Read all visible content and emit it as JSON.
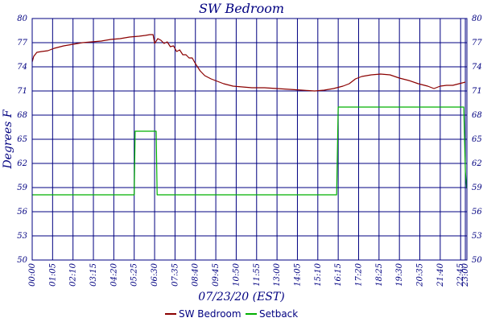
{
  "chart_data": {
    "type": "line",
    "title": "SW Bedroom",
    "xlabel": "07/23/20 (EST)",
    "ylabel": "Degrees F",
    "ylim": [
      50,
      80
    ],
    "y_ticks": [
      50,
      53,
      56,
      59,
      62,
      65,
      68,
      71,
      74,
      77,
      80
    ],
    "y_tick_labels": [
      "50",
      "53",
      "56",
      "59",
      "62",
      "65",
      "68",
      "71",
      "74",
      "77",
      "80"
    ],
    "x_tick_labels": [
      "00:00",
      "01:05",
      "02:10",
      "03:15",
      "04:20",
      "05:25",
      "06:30",
      "07:35",
      "08:40",
      "09:45",
      "10:50",
      "11:55",
      "13:00",
      "14:05",
      "15:10",
      "16:15",
      "17:20",
      "18:25",
      "19:30",
      "20:35",
      "21:40",
      "22:45",
      "23:00"
    ],
    "x_tick_minutes": [
      0,
      65,
      130,
      195,
      260,
      325,
      390,
      455,
      520,
      585,
      650,
      715,
      780,
      845,
      910,
      975,
      1040,
      1105,
      1170,
      1235,
      1300,
      1365,
      1380
    ],
    "xlim_minutes": [
      0,
      1385
    ],
    "grid": true,
    "legend_position": "bottom",
    "series": [
      {
        "name": "SW Bedroom",
        "color": "#8b0000",
        "points": [
          [
            0,
            74.6
          ],
          [
            5,
            75.3
          ],
          [
            15,
            75.8
          ],
          [
            30,
            75.9
          ],
          [
            50,
            76.0
          ],
          [
            70,
            76.3
          ],
          [
            100,
            76.6
          ],
          [
            130,
            76.8
          ],
          [
            160,
            77.0
          ],
          [
            190,
            77.1
          ],
          [
            220,
            77.2
          ],
          [
            250,
            77.4
          ],
          [
            280,
            77.5
          ],
          [
            310,
            77.7
          ],
          [
            340,
            77.8
          ],
          [
            360,
            77.9
          ],
          [
            375,
            78.0
          ],
          [
            385,
            78.0
          ],
          [
            390,
            76.9
          ],
          [
            400,
            77.5
          ],
          [
            410,
            77.3
          ],
          [
            420,
            76.9
          ],
          [
            430,
            77.1
          ],
          [
            440,
            76.5
          ],
          [
            450,
            76.6
          ],
          [
            460,
            75.9
          ],
          [
            470,
            76.1
          ],
          [
            480,
            75.5
          ],
          [
            490,
            75.5
          ],
          [
            500,
            75.1
          ],
          [
            510,
            75.1
          ],
          [
            520,
            74.4
          ],
          [
            535,
            73.5
          ],
          [
            550,
            72.9
          ],
          [
            570,
            72.5
          ],
          [
            590,
            72.2
          ],
          [
            610,
            71.9
          ],
          [
            640,
            71.6
          ],
          [
            670,
            71.5
          ],
          [
            700,
            71.4
          ],
          [
            740,
            71.4
          ],
          [
            780,
            71.3
          ],
          [
            820,
            71.2
          ],
          [
            860,
            71.1
          ],
          [
            900,
            71.0
          ],
          [
            930,
            71.1
          ],
          [
            960,
            71.3
          ],
          [
            990,
            71.6
          ],
          [
            1010,
            71.9
          ],
          [
            1030,
            72.5
          ],
          [
            1050,
            72.8
          ],
          [
            1080,
            73.0
          ],
          [
            1110,
            73.1
          ],
          [
            1140,
            73.0
          ],
          [
            1170,
            72.6
          ],
          [
            1200,
            72.3
          ],
          [
            1230,
            71.9
          ],
          [
            1260,
            71.6
          ],
          [
            1280,
            71.3
          ],
          [
            1300,
            71.6
          ],
          [
            1320,
            71.7
          ],
          [
            1340,
            71.7
          ],
          [
            1360,
            71.9
          ],
          [
            1380,
            72.1
          ]
        ]
      },
      {
        "name": "Setback",
        "color": "#00b000",
        "points": [
          [
            0,
            58.1
          ],
          [
            325,
            58.1
          ],
          [
            328,
            66.0
          ],
          [
            395,
            66.0
          ],
          [
            398,
            58.1
          ],
          [
            970,
            58.1
          ],
          [
            975,
            69.0
          ],
          [
            1375,
            69.0
          ],
          [
            1380,
            61.0
          ],
          [
            1384,
            58.9
          ]
        ]
      }
    ]
  }
}
